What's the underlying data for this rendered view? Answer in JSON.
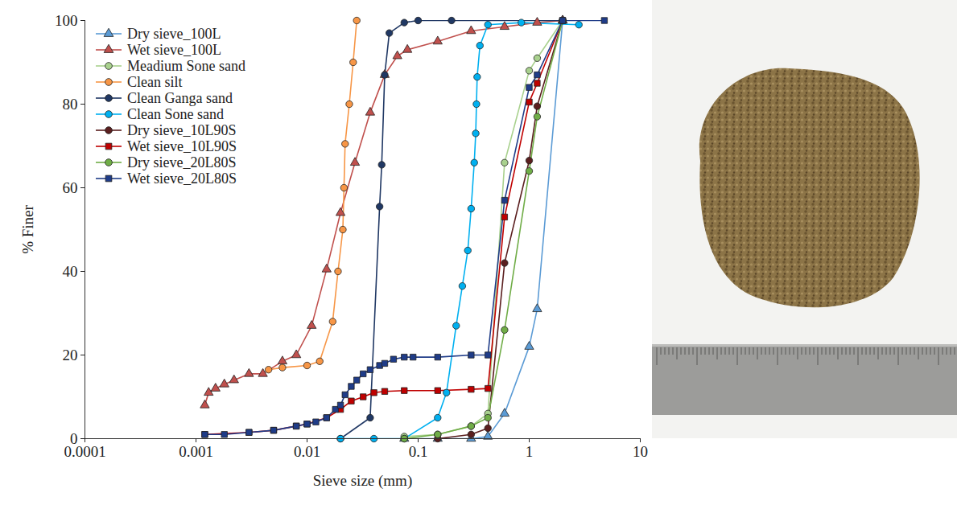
{
  "chart_data": {
    "type": "line",
    "xlabel": "Sieve size (mm)",
    "ylabel": "% Finer",
    "log": "x",
    "xlim": [
      0.0001,
      10
    ],
    "ylim": [
      0,
      100
    ],
    "xticks": [
      0.0001,
      0.001,
      0.01,
      0.1,
      1,
      10
    ],
    "yticks": [
      0,
      20,
      40,
      60,
      80,
      100
    ],
    "grid": false,
    "legend": "top-left",
    "series": [
      {
        "name": "Dry sieve_100L",
        "color": "#5B9BD5",
        "marker": "triangle",
        "x": [
          0.075,
          0.15,
          0.3,
          0.425,
          0.6,
          1.0,
          1.18,
          2
        ],
        "values": [
          0,
          0,
          0,
          0.5,
          6,
          22,
          31,
          100
        ]
      },
      {
        "name": "Wet sieve_100L",
        "color": "#C0504D",
        "marker": "triangle",
        "x": [
          0.0012,
          0.0013,
          0.0015,
          0.0018,
          0.0022,
          0.003,
          0.004,
          0.006,
          0.008,
          0.011,
          0.015,
          0.02,
          0.027,
          0.037,
          0.05,
          0.065,
          0.08,
          0.15,
          0.3,
          0.6,
          1.18,
          2
        ],
        "values": [
          8,
          11,
          12,
          13,
          14,
          15.5,
          15.5,
          18.5,
          20,
          27,
          40.5,
          54,
          66,
          78,
          87,
          91.5,
          93,
          95,
          97.5,
          98.5,
          99.5,
          100
        ]
      },
      {
        "name": "Meadium Sone sand",
        "color": "#A9D18E",
        "marker": "circle",
        "x": [
          0.075,
          0.15,
          0.3,
          0.425,
          0.6,
          1.0,
          1.18,
          2
        ],
        "values": [
          0.5,
          1,
          3,
          6,
          66,
          88,
          91,
          100
        ]
      },
      {
        "name": "Clean silt",
        "color": "#F79646",
        "marker": "circle",
        "x": [
          0.0045,
          0.006,
          0.01,
          0.013,
          0.017,
          0.019,
          0.021,
          0.0215,
          0.022,
          0.024,
          0.026,
          0.028
        ],
        "values": [
          16.5,
          17,
          17.5,
          18.5,
          28,
          40,
          50,
          60,
          70.5,
          80,
          90,
          100
        ]
      },
      {
        "name": "Clean Ganga sand",
        "color": "#203864",
        "marker": "circle",
        "x": [
          0.02,
          0.037,
          0.045,
          0.047,
          0.05,
          0.055,
          0.075,
          0.1,
          0.2,
          2
        ],
        "values": [
          0,
          5,
          55.5,
          65.5,
          87,
          97,
          99.5,
          100,
          100,
          100
        ]
      },
      {
        "name": "Clean Sone sand",
        "color": "#00B0F0",
        "marker": "circle",
        "x": [
          0.02,
          0.04,
          0.075,
          0.15,
          0.18,
          0.22,
          0.25,
          0.28,
          0.3,
          0.32,
          0.33,
          0.335,
          0.34,
          0.36,
          0.425,
          0.85,
          2.8
        ],
        "values": [
          0,
          0,
          0,
          5,
          11,
          27,
          36.5,
          45,
          55,
          66,
          73,
          80,
          86.5,
          94,
          99,
          99.5,
          99
        ]
      },
      {
        "name": "Dry sieve_10L90S",
        "color": "#5B1F1F",
        "marker": "circle",
        "x": [
          0.15,
          0.3,
          0.425,
          0.6,
          1.0,
          1.18,
          2
        ],
        "values": [
          0,
          1,
          2.5,
          42,
          66.5,
          79.5,
          100
        ]
      },
      {
        "name": "Wet sieve_10L90S",
        "color": "#C00000",
        "marker": "square",
        "x": [
          0.0012,
          0.003,
          0.005,
          0.008,
          0.01,
          0.015,
          0.02,
          0.025,
          0.032,
          0.04,
          0.05,
          0.075,
          0.15,
          0.3,
          0.425,
          0.6,
          1.0,
          1.18,
          2
        ],
        "values": [
          1,
          1.5,
          2,
          3,
          3.5,
          5,
          7,
          9,
          10,
          11,
          11.3,
          11.5,
          11.5,
          11.8,
          12,
          53,
          80.5,
          85,
          100
        ]
      },
      {
        "name": "Dry sieve_20L80S",
        "color": "#70AD47",
        "marker": "circle",
        "x": [
          0.075,
          0.15,
          0.3,
          0.425,
          0.6,
          1.0,
          1.18,
          2
        ],
        "values": [
          0,
          1,
          3,
          5,
          26,
          64,
          77,
          100
        ]
      },
      {
        "name": "Wet sieve_20L80S",
        "color": "#1F3C88",
        "marker": "square",
        "x": [
          0.0012,
          0.0018,
          0.003,
          0.005,
          0.008,
          0.01,
          0.012,
          0.015,
          0.018,
          0.02,
          0.022,
          0.025,
          0.028,
          0.032,
          0.037,
          0.045,
          0.05,
          0.06,
          0.075,
          0.09,
          0.15,
          0.3,
          0.425,
          0.6,
          1.0,
          1.18,
          2,
          4.75
        ],
        "values": [
          1,
          1,
          1.5,
          2,
          3,
          3.5,
          4,
          5,
          7,
          8,
          10.5,
          12.5,
          14,
          15.5,
          16.5,
          17.5,
          18,
          19,
          19.5,
          19.5,
          19.5,
          20,
          20,
          57,
          84,
          87,
          100,
          100
        ]
      }
    ]
  }
}
